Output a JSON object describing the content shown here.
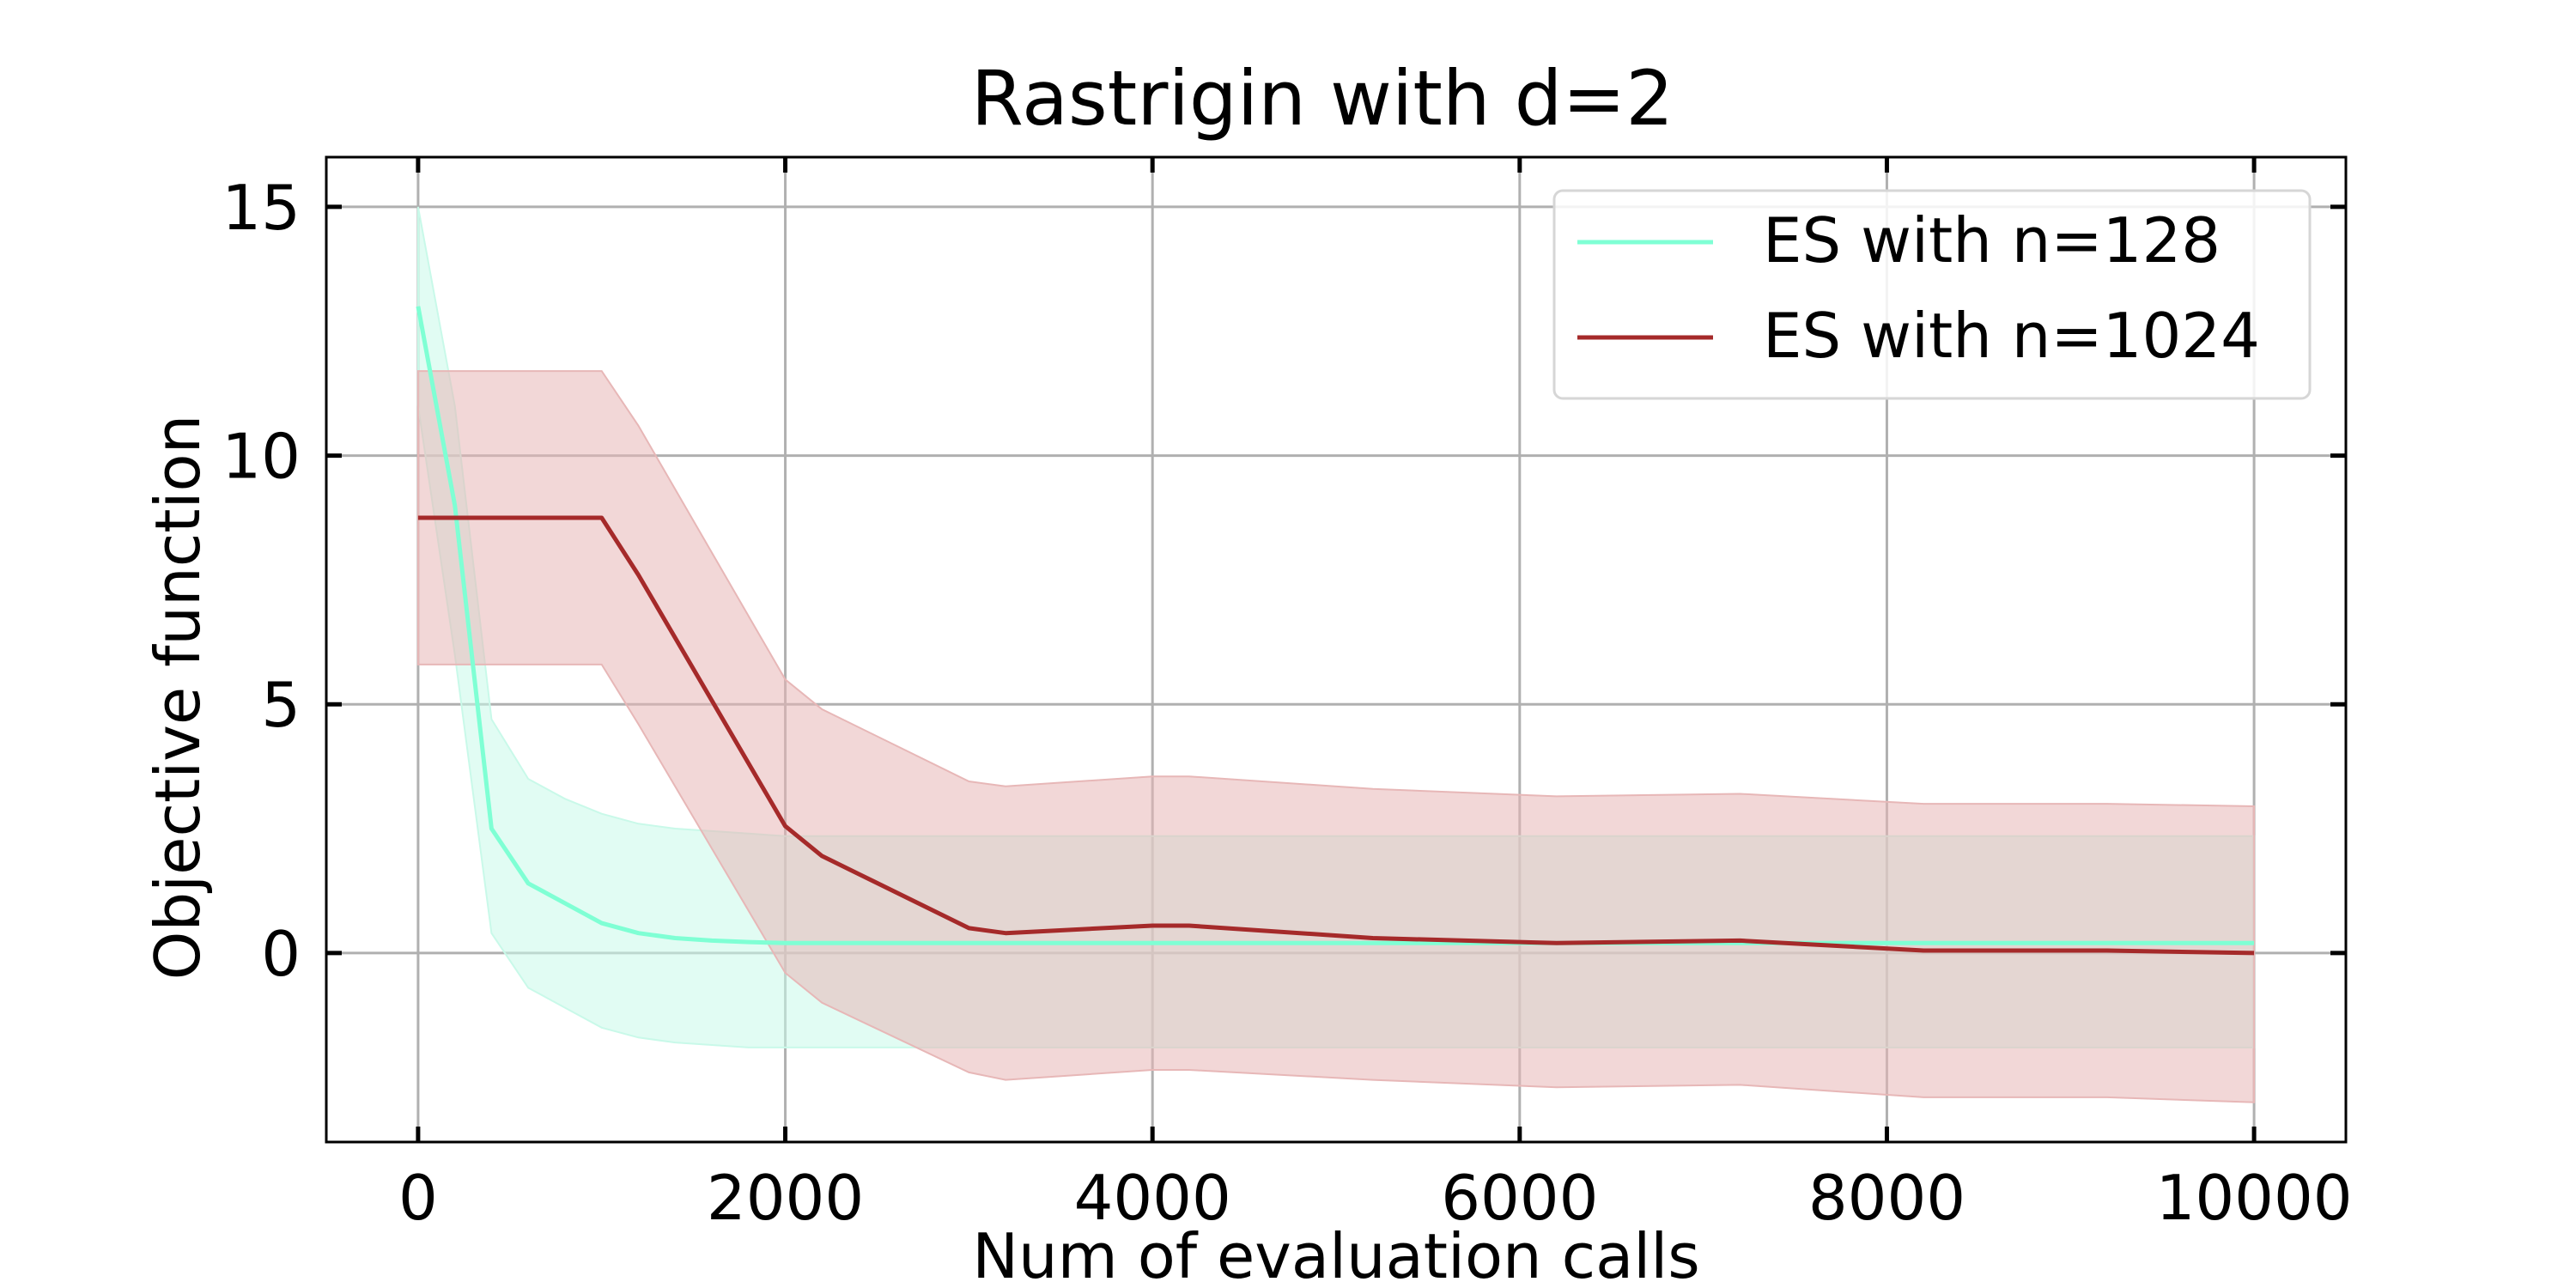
{
  "chart_data": {
    "type": "line",
    "title": "Rastrigin with d=2",
    "xlabel": "Num of evaluation calls",
    "ylabel": "Objective function",
    "xlim": [
      -500,
      10500
    ],
    "ylim": [
      -3.8,
      16
    ],
    "xticks": [
      0,
      2000,
      4000,
      6000,
      8000,
      10000
    ],
    "xtick_labels": [
      "0",
      "2000",
      "4000",
      "6000",
      "8000",
      "10000"
    ],
    "yticks": [
      0,
      5,
      10,
      15
    ],
    "ytick_labels": [
      "0",
      "5",
      "10",
      "15"
    ],
    "grid": true,
    "legend_position": "top-right",
    "series": [
      {
        "name": "ES with n=128",
        "color": "#7fffd4",
        "band_color": "#c9f9e9",
        "x": [
          0,
          200,
          400,
          600,
          800,
          1000,
          1200,
          1400,
          1600,
          1800,
          2000,
          3000,
          4000,
          5000,
          6000,
          7000,
          8000,
          9000,
          10000
        ],
        "y": [
          13.0,
          9.0,
          2.5,
          1.4,
          1.0,
          0.6,
          0.4,
          0.3,
          0.25,
          0.22,
          0.2,
          0.2,
          0.2,
          0.2,
          0.2,
          0.2,
          0.2,
          0.2,
          0.2
        ],
        "lower": [
          11.0,
          6.0,
          0.4,
          -0.7,
          -1.1,
          -1.5,
          -1.7,
          -1.8,
          -1.85,
          -1.9,
          -1.9,
          -1.9,
          -1.9,
          -1.9,
          -1.9,
          -1.9,
          -1.9,
          -1.9,
          -1.9
        ],
        "upper": [
          15.0,
          11.0,
          4.7,
          3.5,
          3.1,
          2.8,
          2.6,
          2.5,
          2.45,
          2.4,
          2.35,
          2.35,
          2.35,
          2.35,
          2.35,
          2.35,
          2.35,
          2.35,
          2.35
        ]
      },
      {
        "name": "ES with n=1024",
        "color": "#a52a2a",
        "band_color": "#e7b7b7",
        "x": [
          0,
          1000,
          1200,
          2000,
          2200,
          3000,
          3200,
          4000,
          4200,
          5200,
          6200,
          7200,
          8200,
          9200,
          10000
        ],
        "y": [
          8.75,
          8.75,
          7.6,
          2.55,
          1.95,
          0.5,
          0.4,
          0.55,
          0.55,
          0.3,
          0.2,
          0.25,
          0.05,
          0.05,
          0.0
        ],
        "lower": [
          5.8,
          5.8,
          4.6,
          -0.4,
          -1.0,
          -2.4,
          -2.55,
          -2.35,
          -2.35,
          -2.55,
          -2.7,
          -2.65,
          -2.9,
          -2.9,
          -3.0
        ],
        "upper": [
          11.7,
          11.7,
          10.6,
          5.5,
          4.9,
          3.45,
          3.35,
          3.55,
          3.55,
          3.3,
          3.15,
          3.2,
          3.0,
          3.0,
          2.95
        ]
      }
    ]
  }
}
